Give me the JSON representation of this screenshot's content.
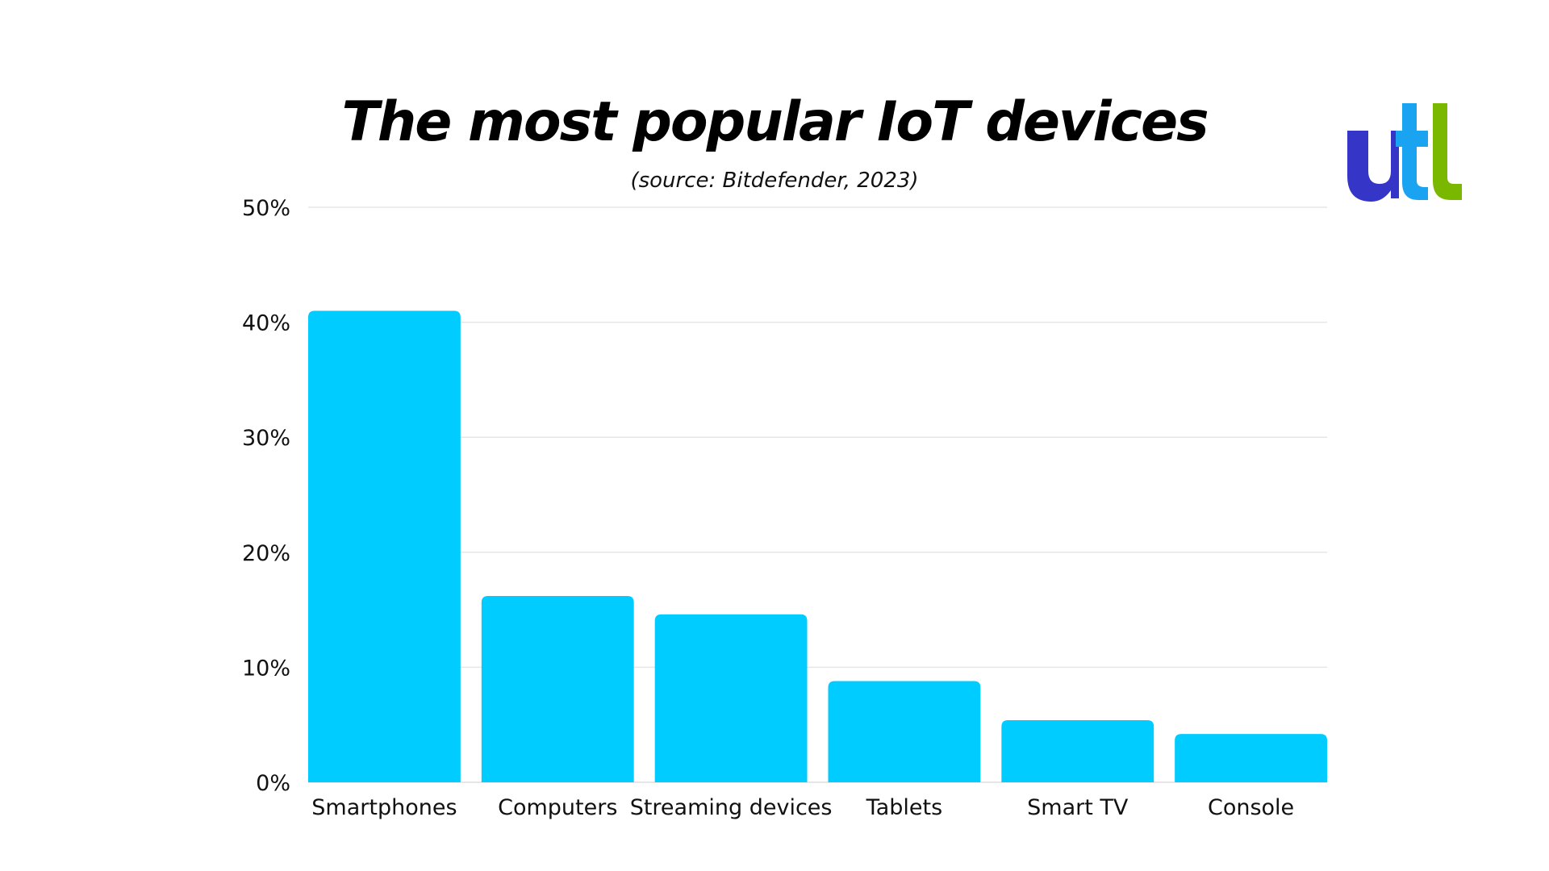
{
  "header": {
    "title": "The most popular IoT devices",
    "subtitle": "(source: Bitdefender, 2023)"
  },
  "logo": {
    "name": "utl-logo",
    "text": "utl",
    "colors": [
      "#3535c8",
      "#1aa3f0",
      "#7ab800"
    ]
  },
  "chart_data": {
    "type": "bar",
    "title": "The most popular IoT devices",
    "subtitle": "(source: Bitdefender, 2023)",
    "xlabel": "",
    "ylabel": "",
    "categories": [
      "Smartphones",
      "Computers",
      "Streaming devices",
      "Tablets",
      "Smart TV",
      "Console"
    ],
    "values": [
      41,
      16.2,
      14.6,
      8.8,
      5.4,
      4.2
    ],
    "ylim": [
      0,
      50
    ],
    "yticks": [
      0,
      10,
      20,
      30,
      40,
      50
    ],
    "ytick_labels": [
      "0%",
      "10%",
      "20%",
      "30%",
      "40%",
      "50%"
    ],
    "grid": true,
    "legend": "none",
    "bar_color": "#00ccff",
    "grid_color": "#e6e6e6"
  }
}
